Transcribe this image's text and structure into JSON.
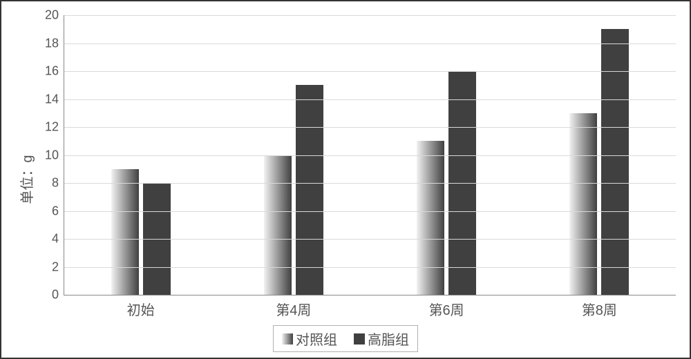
{
  "chart": {
    "type": "bar",
    "yaxis_title": "单位：g",
    "categories": [
      "初始",
      "第4周",
      "第6周",
      "第8周"
    ],
    "series": [
      {
        "name": "对照组",
        "values": [
          9,
          10,
          11,
          13
        ],
        "fill_type": "gradient",
        "fill_from": "#f2f2f2",
        "fill_to": "#404040"
      },
      {
        "name": "高脂组",
        "values": [
          8,
          15,
          16,
          19
        ],
        "fill_type": "solid",
        "fill": "#404040"
      }
    ],
    "ylim": [
      0,
      20
    ],
    "ytick_step": 2,
    "grid_color": "#d9d9d9",
    "axis_text_color": "#555555",
    "axis_fontsize": 18,
    "label_fontsize": 20,
    "background_color": "#ffffff",
    "frame_border_color": "#333333",
    "legend_border_color": "#b0b0b0",
    "bar_width_pct": 4.5,
    "bar_gap_pct": 0.7,
    "group_positions_pct": [
      12.5,
      37.5,
      62.5,
      87.5
    ]
  }
}
